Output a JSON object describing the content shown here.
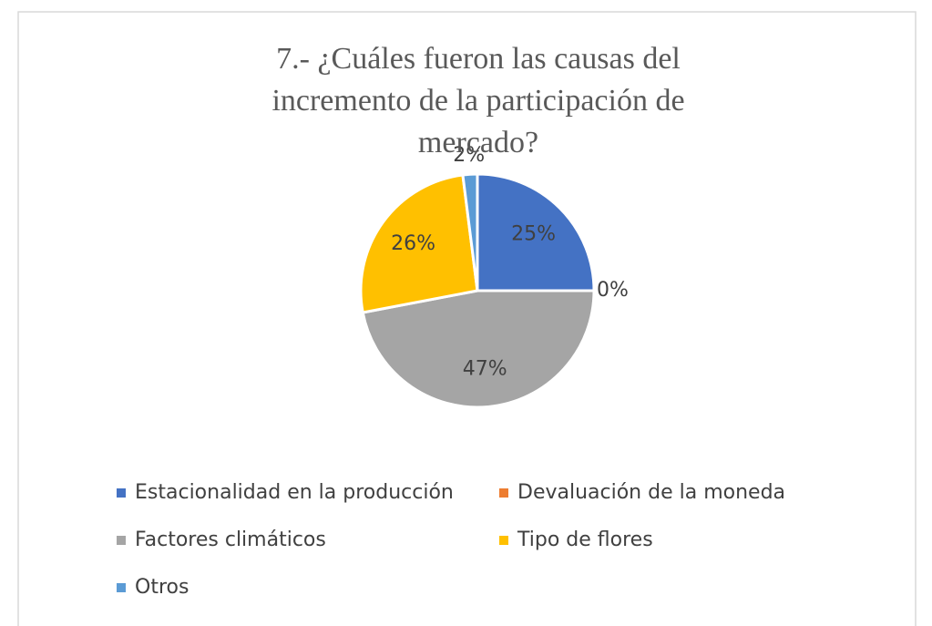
{
  "chart_data": {
    "type": "pie",
    "title": "7.- ¿Cuáles fueron las causas del incremento de la participación de mercado?",
    "categories": [
      "Estacionalidad en la producción",
      "Devaluación de la moneda",
      "Factores climáticos",
      "Tipo de flores",
      "Otros"
    ],
    "values": [
      25,
      0,
      47,
      26,
      2
    ],
    "value_labels": [
      "25%",
      "0%",
      "47%",
      "26%",
      "2%"
    ],
    "colors": [
      "#4472c4",
      "#ed7d31",
      "#a5a5a5",
      "#ffc000",
      "#5b9bd5"
    ]
  }
}
